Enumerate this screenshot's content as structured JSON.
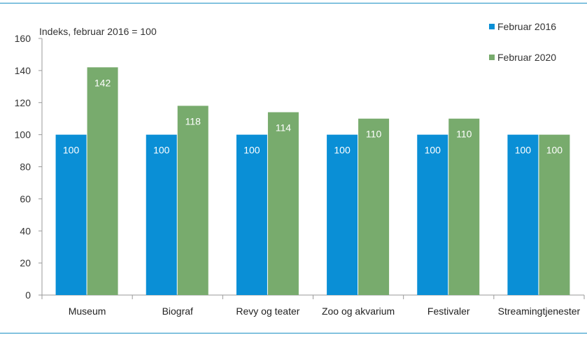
{
  "chart_data": {
    "type": "bar",
    "ylabel": "Indeks, februar 2016 = 100",
    "ylim": [
      0,
      160
    ],
    "yticks": [
      0,
      20,
      40,
      60,
      80,
      100,
      120,
      140,
      160
    ],
    "categories": [
      "Museum",
      "Biograf",
      "Revy og teater",
      "Zoo og akvarium",
      "Festivaler",
      "Streamingtjenester"
    ],
    "series": [
      {
        "name": "Februar 2016",
        "color": "#0a8fd6",
        "values": [
          100,
          100,
          100,
          100,
          100,
          100
        ]
      },
      {
        "name": "Februar 2020",
        "color": "#78ab6d",
        "values": [
          142,
          118,
          114,
          110,
          110,
          100
        ]
      }
    ],
    "data_labels": true,
    "grid": false,
    "legend_position": "top-right"
  }
}
